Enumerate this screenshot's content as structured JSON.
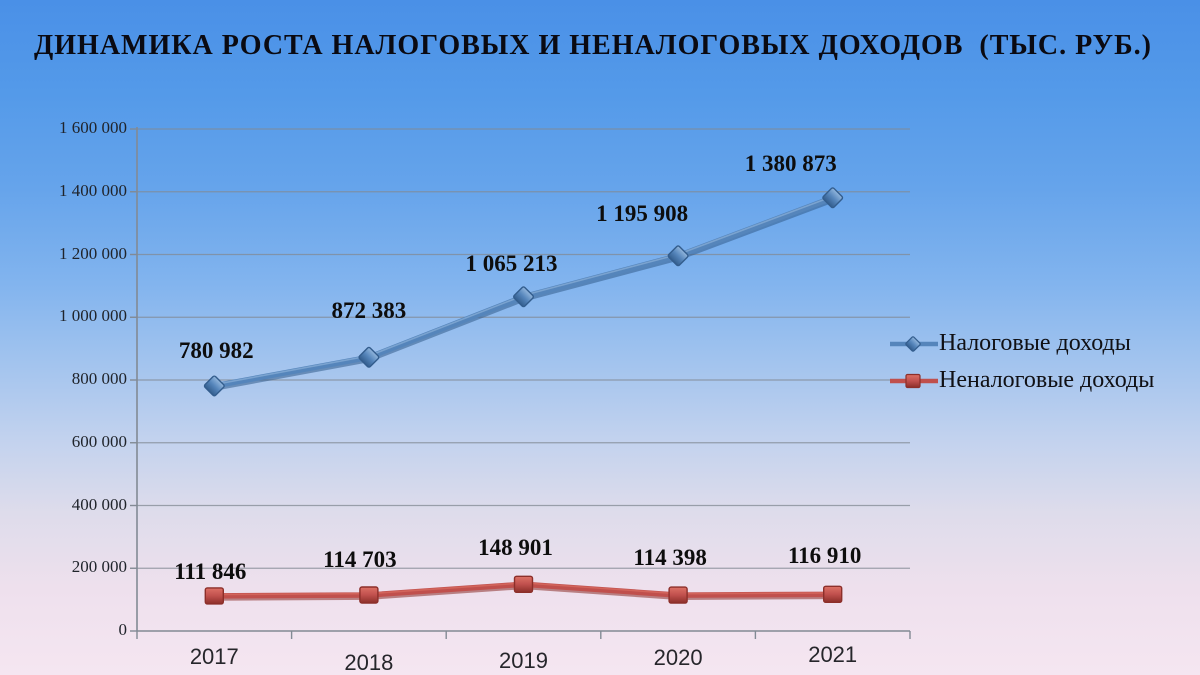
{
  "title": "ДИНАМИКА РОСТА НАЛОГОВЫХ И НЕНАЛОГОВЫХ ДОХОДОВ  (ТЫС. РУБ.)",
  "colors": {
    "background_top": "#4a90e7",
    "background_bottom": "#f5e6f1",
    "gridline": "#828a94",
    "axis": "#828a94",
    "title_text": "#0a0a12",
    "data_label_text": "#0d0d0d",
    "tick_label_text": "#20242b"
  },
  "chart_data": {
    "type": "line",
    "title": "ДИНАМИКА РОСТА НАЛОГОВЫХ И НЕНАЛОГОВЫХ ДОХОДОВ  (ТЫС. РУБ.)",
    "categories": [
      "2017",
      "2018",
      "2019",
      "2020",
      "2021"
    ],
    "series": [
      {
        "name": "Налоговые доходы",
        "marker": "diamond",
        "color": "#5585bb",
        "color_light": "#93b7dd",
        "color_dark": "#335d8d",
        "values": [
          780982,
          872383,
          1065213,
          1195908,
          1380873
        ],
        "labels": [
          "780 982",
          "872 383",
          "1 065 213",
          "1 195 908",
          "1 380 873"
        ]
      },
      {
        "name": "Неналоговые доходы",
        "marker": "square",
        "color": "#c0504d",
        "color_light": "#dd7166",
        "color_dark": "#8c2f2a",
        "values": [
          111846,
          114703,
          148901,
          114398,
          116910
        ],
        "labels": [
          "111 846",
          "114 703",
          "148 901",
          "114 398",
          "116 910"
        ]
      }
    ],
    "ylim": [
      0,
      1600000
    ],
    "ytick_step": 200000,
    "ytick_labels": [
      "0",
      "200 000",
      "400 000",
      "600 000",
      "800 000",
      "1 000 000",
      "1 200 000",
      "1 400 000",
      "1 600 000"
    ],
    "grid": true,
    "legend_position": "right",
    "unit": "тыс. руб."
  }
}
